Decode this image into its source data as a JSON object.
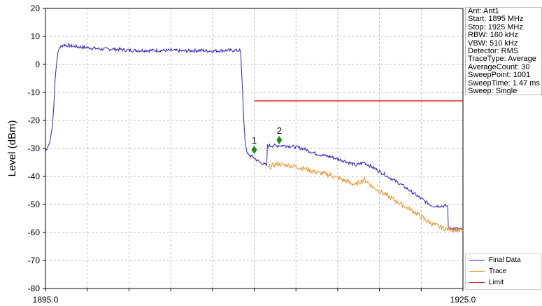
{
  "chart_data": {
    "type": "line",
    "ylabel": "Level (dBm)",
    "xlim": [
      1895.0,
      1925.0
    ],
    "ylim": [
      -80,
      20
    ],
    "x_tick_labels": [
      "1895.0",
      "1925.0"
    ],
    "y_ticks": [
      20,
      10,
      0,
      -10,
      -20,
      -30,
      -40,
      -50,
      -60,
      -70,
      -80
    ],
    "grid": true,
    "legend_position": "bottom-right",
    "series": [
      {
        "name": "Final Data",
        "color": "#2a1fc8",
        "points": [
          [
            1895.0,
            -31
          ],
          [
            1895.3,
            -28
          ],
          [
            1895.5,
            -22
          ],
          [
            1895.6,
            -15
          ],
          [
            1895.7,
            -5
          ],
          [
            1895.85,
            3
          ],
          [
            1896.0,
            6
          ],
          [
            1896.3,
            7
          ],
          [
            1897.0,
            6.5
          ],
          [
            1898.0,
            6
          ],
          [
            1899.0,
            5.5
          ],
          [
            1900.0,
            5.5
          ],
          [
            1901.0,
            5
          ],
          [
            1902.0,
            5
          ],
          [
            1903.0,
            5
          ],
          [
            1904.0,
            5
          ],
          [
            1905.0,
            4.8
          ],
          [
            1906.0,
            5
          ],
          [
            1907.0,
            4.8
          ],
          [
            1908.0,
            5
          ],
          [
            1909.0,
            5
          ],
          [
            1909.05,
            2
          ],
          [
            1909.15,
            -8
          ],
          [
            1909.25,
            -20
          ],
          [
            1909.35,
            -28
          ],
          [
            1909.5,
            -32
          ],
          [
            1909.9,
            -33
          ],
          [
            1910.4,
            -35
          ],
          [
            1910.9,
            -36
          ],
          [
            1910.95,
            -29
          ],
          [
            1911.6,
            -29
          ],
          [
            1912.4,
            -29
          ],
          [
            1913.5,
            -30
          ],
          [
            1914.5,
            -32
          ],
          [
            1915.5,
            -33
          ],
          [
            1916.5,
            -34.5
          ],
          [
            1917.3,
            -36
          ],
          [
            1917.9,
            -35
          ],
          [
            1918.6,
            -37
          ],
          [
            1919.6,
            -40
          ],
          [
            1920.6,
            -43
          ],
          [
            1921.6,
            -46.5
          ],
          [
            1922.3,
            -49
          ],
          [
            1922.8,
            -50.5
          ],
          [
            1923.6,
            -50.5
          ],
          [
            1923.9,
            -50.5
          ],
          [
            1923.95,
            -58.5
          ],
          [
            1924.4,
            -58.5
          ],
          [
            1925.0,
            -59
          ]
        ]
      },
      {
        "name": "Trace",
        "color": "#f0922b",
        "points": [
          [
            1910.95,
            -37
          ],
          [
            1911.6,
            -35.5
          ],
          [
            1912.4,
            -36
          ],
          [
            1913.5,
            -37
          ],
          [
            1914.5,
            -38.5
          ],
          [
            1915.5,
            -39.5
          ],
          [
            1916.5,
            -41.5
          ],
          [
            1917.3,
            -43
          ],
          [
            1917.9,
            -41
          ],
          [
            1918.6,
            -44
          ],
          [
            1919.6,
            -47
          ],
          [
            1920.6,
            -50
          ],
          [
            1921.6,
            -53
          ],
          [
            1922.3,
            -55.5
          ],
          [
            1922.8,
            -57
          ],
          [
            1923.6,
            -58.5
          ],
          [
            1924.4,
            -59
          ],
          [
            1925.0,
            -59.5
          ]
        ]
      },
      {
        "name": "Limit",
        "color": "#e02020",
        "points": [
          [
            1910.0,
            -13
          ],
          [
            1925.0,
            -13
          ]
        ]
      }
    ],
    "markers": [
      {
        "label": "1",
        "x": 1910.0,
        "y": -30.5,
        "color": "#1e8a1e"
      },
      {
        "label": "2",
        "x": 1911.8,
        "y": -27,
        "color": "#1e8a1e"
      }
    ]
  },
  "info_panel": {
    "lines": [
      "Ant: Ant1",
      "Start: 1895 MHz",
      "Stop: 1925 MHz",
      "RBW: 160 kHz",
      "VBW: 510 kHz",
      "Detector: RMS",
      "TraceType: Average",
      "AverageCount: 30",
      "SweepPoint: 1001",
      "SweepTime: 1.47 ms",
      "Sweep: Single"
    ]
  },
  "legend": {
    "items": [
      {
        "label": "Final Data",
        "color": "#2a1fc8"
      },
      {
        "label": "Trace",
        "color": "#f0922b"
      },
      {
        "label": "Limit",
        "color": "#e02020"
      }
    ]
  }
}
